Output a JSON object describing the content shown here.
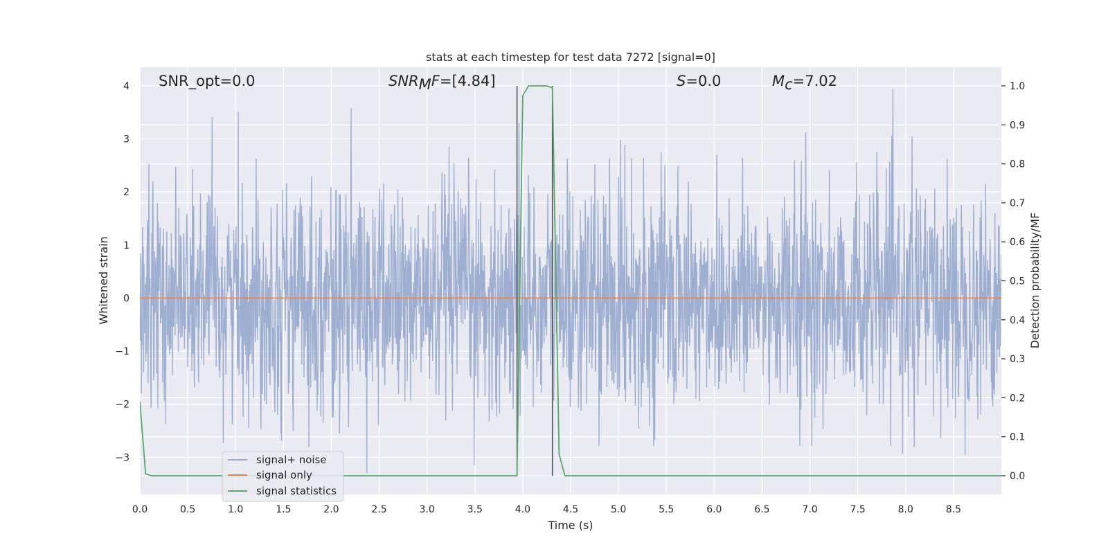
{
  "chart_data": {
    "type": "line",
    "title": "stats at each timestep for test data 7272 [signal=0]",
    "xlabel": "Time (s)",
    "ylabel": "Whitened strain",
    "y2label": "Detection probability/MF",
    "xlim": [
      0.0,
      9.0
    ],
    "ylim": [
      -3.7,
      4.35
    ],
    "y2lim": [
      -0.048,
      1.048
    ],
    "xticks": [
      0.0,
      0.5,
      1.0,
      1.5,
      2.0,
      2.5,
      3.0,
      3.5,
      4.0,
      4.5,
      5.0,
      5.5,
      6.0,
      6.5,
      7.0,
      7.5,
      8.0,
      8.5
    ],
    "xtick_labels": [
      "0.0",
      "0.5",
      "1.0",
      "1.5",
      "2.0",
      "2.5",
      "3.0",
      "3.5",
      "4.0",
      "4.5",
      "5.0",
      "5.5",
      "6.0",
      "6.5",
      "7.0",
      "7.5",
      "8.0",
      "8.5"
    ],
    "yticks": [
      -3,
      -2,
      -1,
      0,
      1,
      2,
      3,
      4
    ],
    "ytick_labels": [
      "−3",
      "−2",
      "−1",
      "0",
      "1",
      "2",
      "3",
      "4"
    ],
    "y2ticks": [
      0.0,
      0.1,
      0.2,
      0.3,
      0.4,
      0.5,
      0.6,
      0.7,
      0.8,
      0.9,
      1.0
    ],
    "y2tick_labels": [
      "0.0",
      "0.1",
      "0.2",
      "0.3",
      "0.4",
      "0.5",
      "0.6",
      "0.7",
      "0.8",
      "0.9",
      "1.0"
    ],
    "grid": true,
    "legend_placement": "lower-left",
    "series": [
      {
        "name": "signal+ noise",
        "color": "#9aabcf",
        "axis": "left",
        "kind": "noise",
        "sample_rate_hz": 256,
        "amplitude_std": 1.0
      },
      {
        "name": "signal only",
        "color": "#dd8452",
        "axis": "left",
        "x": [
          0.0,
          9.0
        ],
        "y": [
          0.0,
          0.0
        ]
      },
      {
        "name": "signal statistics",
        "color": "#55a868",
        "axis": "right",
        "x": [
          0.0,
          0.06,
          0.12,
          3.94,
          4.0,
          4.06,
          4.12,
          4.25,
          4.31,
          4.38,
          4.44,
          9.0
        ],
        "y": [
          0.19,
          0.005,
          0.0,
          0.0,
          0.975,
          1.0,
          1.0,
          1.0,
          0.995,
          0.055,
          0.0,
          0.0
        ]
      }
    ],
    "vertical_lines": [
      3.94,
      4.31
    ],
    "annotations": {
      "snr_opt": "SNR_opt=0.0",
      "snr_mf_main": "SNR",
      "snr_mf_sub": "M",
      "snr_mf_rest": "F",
      "snr_mf_value": "=[4.84]",
      "s_label": "S",
      "s_value": "=0.0",
      "mc_main": "M",
      "mc_sub": "c",
      "mc_value": "=7.02"
    }
  }
}
